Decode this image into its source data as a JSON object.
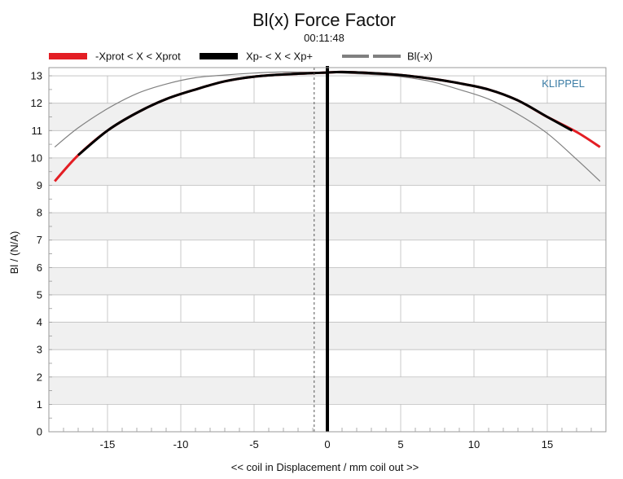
{
  "colors": {
    "red": "#e31e24",
    "black": "#000000",
    "gray": "#808080",
    "brand": "#3a7ca5",
    "band": "#f0f0f0",
    "grid": "#bdbdbd"
  },
  "chart_data": {
    "type": "line",
    "title": "Bl(x) Force Factor",
    "subtitle": "00:11:48",
    "xlabel": "<< coil in Displacement / mm coil out >>",
    "ylabel": "Bl / (N/A)",
    "brand": "KLIPPEL",
    "xlim": [
      -19,
      19
    ],
    "ylim": [
      0,
      13.3
    ],
    "xticks": [
      -15,
      -10,
      -5,
      0,
      5,
      10,
      15
    ],
    "yticks": [
      0,
      1,
      2,
      3,
      4,
      5,
      6,
      7,
      8,
      9,
      10,
      11,
      12,
      13
    ],
    "grid": true,
    "legend_position": "top",
    "markers": {
      "center_line_x": 0,
      "dashed_line_x": -0.9
    },
    "series": [
      {
        "name": "-Xprot < X < Xprot",
        "color": "red",
        "x": [
          -18.6,
          -17,
          -15,
          -13,
          -11,
          -9,
          -7,
          -5,
          -3,
          -1,
          0,
          1,
          3,
          5,
          7,
          9,
          11,
          13,
          15,
          17,
          18.6
        ],
        "y": [
          9.15,
          10.1,
          11.0,
          11.65,
          12.15,
          12.5,
          12.8,
          12.97,
          13.05,
          13.1,
          13.12,
          13.14,
          13.1,
          13.03,
          12.9,
          12.73,
          12.5,
          12.1,
          11.5,
          10.95,
          10.4
        ]
      },
      {
        "name": "Xp- < X < Xp+",
        "color": "black",
        "x": [
          -17,
          -15,
          -13,
          -11,
          -9,
          -7,
          -5,
          -3,
          -1,
          0,
          1,
          3,
          5,
          7,
          9,
          11,
          13,
          15,
          16.7
        ],
        "y": [
          10.1,
          11.0,
          11.65,
          12.15,
          12.5,
          12.8,
          12.97,
          13.05,
          13.1,
          13.12,
          13.14,
          13.1,
          13.03,
          12.9,
          12.73,
          12.5,
          12.1,
          11.5,
          11.0
        ]
      },
      {
        "name": "Bl(-x)",
        "color": "gray",
        "x": [
          -18.6,
          -17,
          -15,
          -13,
          -11,
          -9,
          -7,
          -5,
          -3,
          -1,
          0,
          1,
          3,
          5,
          7,
          9,
          11,
          13,
          15,
          17,
          18.6
        ],
        "y": [
          10.4,
          11.1,
          11.8,
          12.35,
          12.7,
          12.93,
          13.03,
          13.1,
          13.14,
          13.13,
          13.12,
          13.1,
          13.05,
          12.97,
          12.8,
          12.5,
          12.15,
          11.6,
          10.9,
          9.95,
          9.15
        ]
      }
    ]
  }
}
